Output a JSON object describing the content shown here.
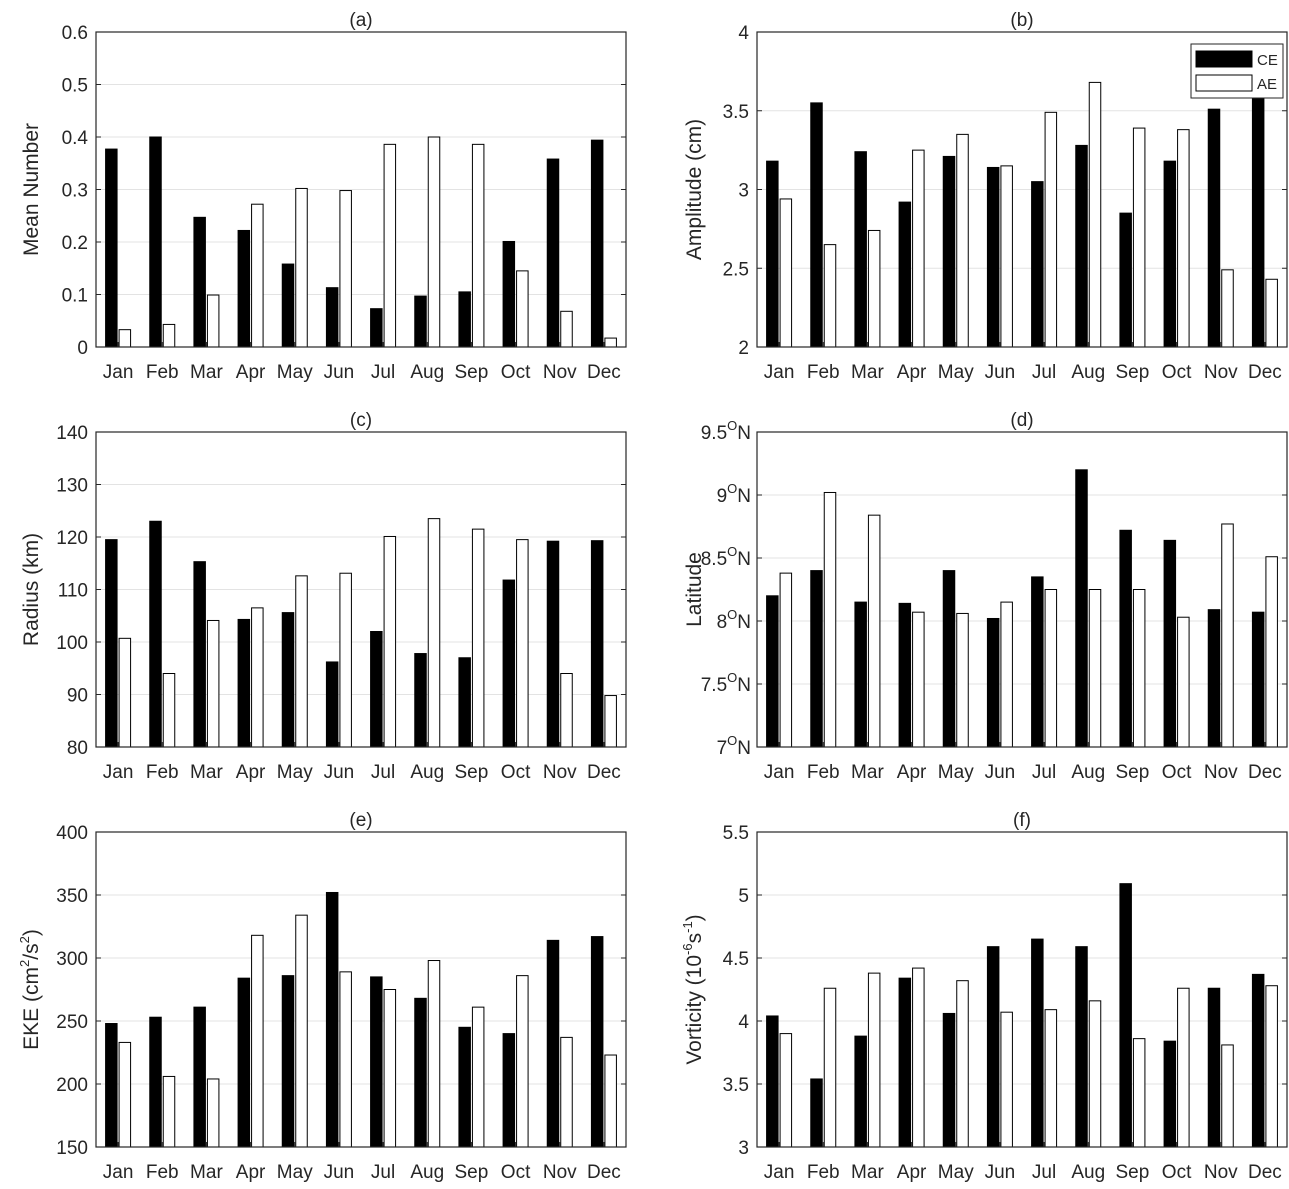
{
  "legend": {
    "ce_label": "CE",
    "ae_label": "AE",
    "placement": "top-right of panel (b)"
  },
  "colors": {
    "ce": "#000000",
    "ae": "#ffffff",
    "axis": "#262626",
    "grid": "#e3e3e3"
  },
  "chart_data": [
    {
      "panel": "(a)",
      "type": "bar",
      "title": "(a)",
      "ylabel": "Mean Number",
      "ylabel_rich": [
        {
          "t": "Mean Number"
        }
      ],
      "categories": [
        "Jan",
        "Feb",
        "Mar",
        "Apr",
        "May",
        "Jun",
        "Jul",
        "Aug",
        "Sep",
        "Oct",
        "Nov",
        "Dec"
      ],
      "ylim": [
        0,
        0.6
      ],
      "yticks": [
        0,
        0.1,
        0.2,
        0.3,
        0.4,
        0.5,
        0.6
      ],
      "ytick_labels": [
        "0",
        "0.1",
        "0.2",
        "0.3",
        "0.4",
        "0.5",
        "0.6"
      ],
      "series": [
        {
          "name": "CE",
          "values": [
            0.377,
            0.4,
            0.247,
            0.222,
            0.158,
            0.113,
            0.073,
            0.097,
            0.105,
            0.201,
            0.358,
            0.394
          ]
        },
        {
          "name": "AE",
          "values": [
            0.033,
            0.043,
            0.099,
            0.272,
            0.302,
            0.298,
            0.386,
            0.4,
            0.386,
            0.145,
            0.068,
            0.017
          ]
        }
      ]
    },
    {
      "panel": "(b)",
      "type": "bar",
      "title": "(b)",
      "ylabel": "Amplitude (cm)",
      "ylabel_rich": [
        {
          "t": "Amplitude (cm)"
        }
      ],
      "categories": [
        "Jan",
        "Feb",
        "Mar",
        "Apr",
        "May",
        "Jun",
        "Jul",
        "Aug",
        "Sep",
        "Oct",
        "Nov",
        "Dec"
      ],
      "ylim": [
        2,
        4
      ],
      "yticks": [
        2,
        2.5,
        3,
        3.5,
        4
      ],
      "ytick_labels": [
        "2",
        "2.5",
        "3",
        "3.5",
        "4"
      ],
      "series": [
        {
          "name": "CE",
          "values": [
            3.18,
            3.55,
            3.24,
            2.92,
            3.21,
            3.14,
            3.05,
            3.28,
            2.85,
            3.18,
            3.51,
            3.58
          ]
        },
        {
          "name": "AE",
          "values": [
            2.94,
            2.65,
            2.74,
            3.25,
            3.35,
            3.15,
            3.49,
            3.68,
            3.39,
            3.38,
            2.49,
            2.43
          ]
        }
      ]
    },
    {
      "panel": "(c)",
      "type": "bar",
      "title": "(c)",
      "ylabel": "Radius (km)",
      "ylabel_rich": [
        {
          "t": "Radius (km)"
        }
      ],
      "categories": [
        "Jan",
        "Feb",
        "Mar",
        "Apr",
        "May",
        "Jun",
        "Jul",
        "Aug",
        "Sep",
        "Oct",
        "Nov",
        "Dec"
      ],
      "ylim": [
        80,
        140
      ],
      "yticks": [
        80,
        90,
        100,
        110,
        120,
        130,
        140
      ],
      "ytick_labels": [
        "80",
        "90",
        "100",
        "110",
        "120",
        "130",
        "140"
      ],
      "series": [
        {
          "name": "CE",
          "values": [
            119.5,
            123.0,
            115.3,
            104.3,
            105.6,
            96.2,
            102.0,
            97.8,
            97.0,
            111.8,
            119.2,
            119.3
          ]
        },
        {
          "name": "AE",
          "values": [
            100.7,
            94.0,
            104.1,
            106.5,
            112.6,
            113.1,
            120.1,
            123.5,
            121.5,
            119.5,
            94.0,
            89.8
          ]
        }
      ]
    },
    {
      "panel": "(d)",
      "type": "bar",
      "title": "(d)",
      "ylabel": "Latitude",
      "ylabel_rich": [
        {
          "t": "Latitude"
        }
      ],
      "categories": [
        "Jan",
        "Feb",
        "Mar",
        "Apr",
        "May",
        "Jun",
        "Jul",
        "Aug",
        "Sep",
        "Oct",
        "Nov",
        "Dec"
      ],
      "ylim": [
        7,
        9.5
      ],
      "yticks": [
        7,
        7.5,
        8,
        8.5,
        9,
        9.5
      ],
      "ytick_labels": [
        [
          {
            "t": "7"
          },
          {
            "t": "O",
            "sup": true
          },
          {
            "t": "N"
          }
        ],
        [
          {
            "t": "7.5"
          },
          {
            "t": "O",
            "sup": true
          },
          {
            "t": "N"
          }
        ],
        [
          {
            "t": "8"
          },
          {
            "t": "O",
            "sup": true
          },
          {
            "t": "N"
          }
        ],
        [
          {
            "t": "8.5"
          },
          {
            "t": "O",
            "sup": true
          },
          {
            "t": "N"
          }
        ],
        [
          {
            "t": "9"
          },
          {
            "t": "O",
            "sup": true
          },
          {
            "t": "N"
          }
        ],
        [
          {
            "t": "9.5"
          },
          {
            "t": "O",
            "sup": true
          },
          {
            "t": "N"
          }
        ]
      ],
      "series": [
        {
          "name": "CE",
          "values": [
            8.2,
            8.4,
            8.15,
            8.14,
            8.4,
            8.02,
            8.35,
            9.2,
            8.72,
            8.64,
            8.09,
            8.07
          ]
        },
        {
          "name": "AE",
          "values": [
            8.38,
            9.02,
            8.84,
            8.07,
            8.06,
            8.15,
            8.25,
            8.25,
            8.25,
            8.03,
            8.77,
            8.51
          ]
        }
      ]
    },
    {
      "panel": "(e)",
      "type": "bar",
      "title": "(e)",
      "ylabel": "EKE (cm2/s2)",
      "ylabel_rich": [
        {
          "t": "EKE (cm"
        },
        {
          "t": "2",
          "sup": true
        },
        {
          "t": "/s"
        },
        {
          "t": "2",
          "sup": true
        },
        {
          "t": ")"
        }
      ],
      "categories": [
        "Jan",
        "Feb",
        "Mar",
        "Apr",
        "May",
        "Jun",
        "Jul",
        "Aug",
        "Sep",
        "Oct",
        "Nov",
        "Dec"
      ],
      "ylim": [
        150,
        400
      ],
      "yticks": [
        150,
        200,
        250,
        300,
        350,
        400
      ],
      "ytick_labels": [
        "150",
        "200",
        "250",
        "300",
        "350",
        "400"
      ],
      "series": [
        {
          "name": "CE",
          "values": [
            248,
            253,
            261,
            284,
            286,
            352,
            285,
            268,
            245,
            240,
            314,
            317
          ]
        },
        {
          "name": "AE",
          "values": [
            233,
            206,
            204,
            318,
            334,
            289,
            275,
            298,
            261,
            286,
            237,
            223
          ]
        }
      ]
    },
    {
      "panel": "(f)",
      "type": "bar",
      "title": "(f)",
      "ylabel": "Vorticity (10-6s-1)",
      "ylabel_rich": [
        {
          "t": "Vorticity (10"
        },
        {
          "t": "-6",
          "sup": true
        },
        {
          "t": "s"
        },
        {
          "t": "-1",
          "sup": true
        },
        {
          "t": ")"
        }
      ],
      "categories": [
        "Jan",
        "Feb",
        "Mar",
        "Apr",
        "May",
        "Jun",
        "Jul",
        "Aug",
        "Sep",
        "Oct",
        "Nov",
        "Dec"
      ],
      "ylim": [
        3,
        5.5
      ],
      "yticks": [
        3,
        3.5,
        4,
        4.5,
        5,
        5.5
      ],
      "ytick_labels": [
        "3",
        "3.5",
        "4",
        "4.5",
        "5",
        "5.5"
      ],
      "series": [
        {
          "name": "CE",
          "values": [
            4.04,
            3.54,
            3.88,
            4.34,
            4.06,
            4.59,
            4.65,
            4.59,
            5.09,
            3.84,
            4.26,
            4.37
          ]
        },
        {
          "name": "AE",
          "values": [
            3.9,
            4.26,
            4.38,
            4.42,
            4.32,
            4.07,
            4.09,
            4.16,
            3.86,
            4.26,
            3.81,
            4.28
          ]
        }
      ]
    }
  ]
}
